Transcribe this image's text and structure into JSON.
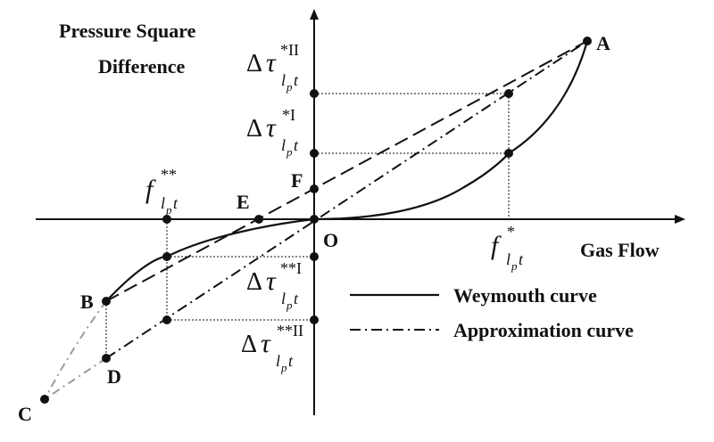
{
  "axes": {
    "y_title_line1": "Pressure Square",
    "y_title_line2": "Difference",
    "x_title": "Gas Flow",
    "origin": "O"
  },
  "points": {
    "A": "A",
    "B": "B",
    "C": "C",
    "D": "D",
    "E": "E",
    "F": "F"
  },
  "annotations": {
    "delta": "Δ",
    "tau": "τ",
    "f": "f",
    "l": "l",
    "p": "p",
    "t": "t",
    "sup_star_II": "*II",
    "sup_star_I": "*I",
    "sup_star_star_I": "**I",
    "sup_star_star_II": "**II",
    "sup_star": "*",
    "sup_star_star": "**"
  },
  "legend": {
    "weymouth": "Weymouth curve",
    "approximation": "Approximation curve"
  }
}
